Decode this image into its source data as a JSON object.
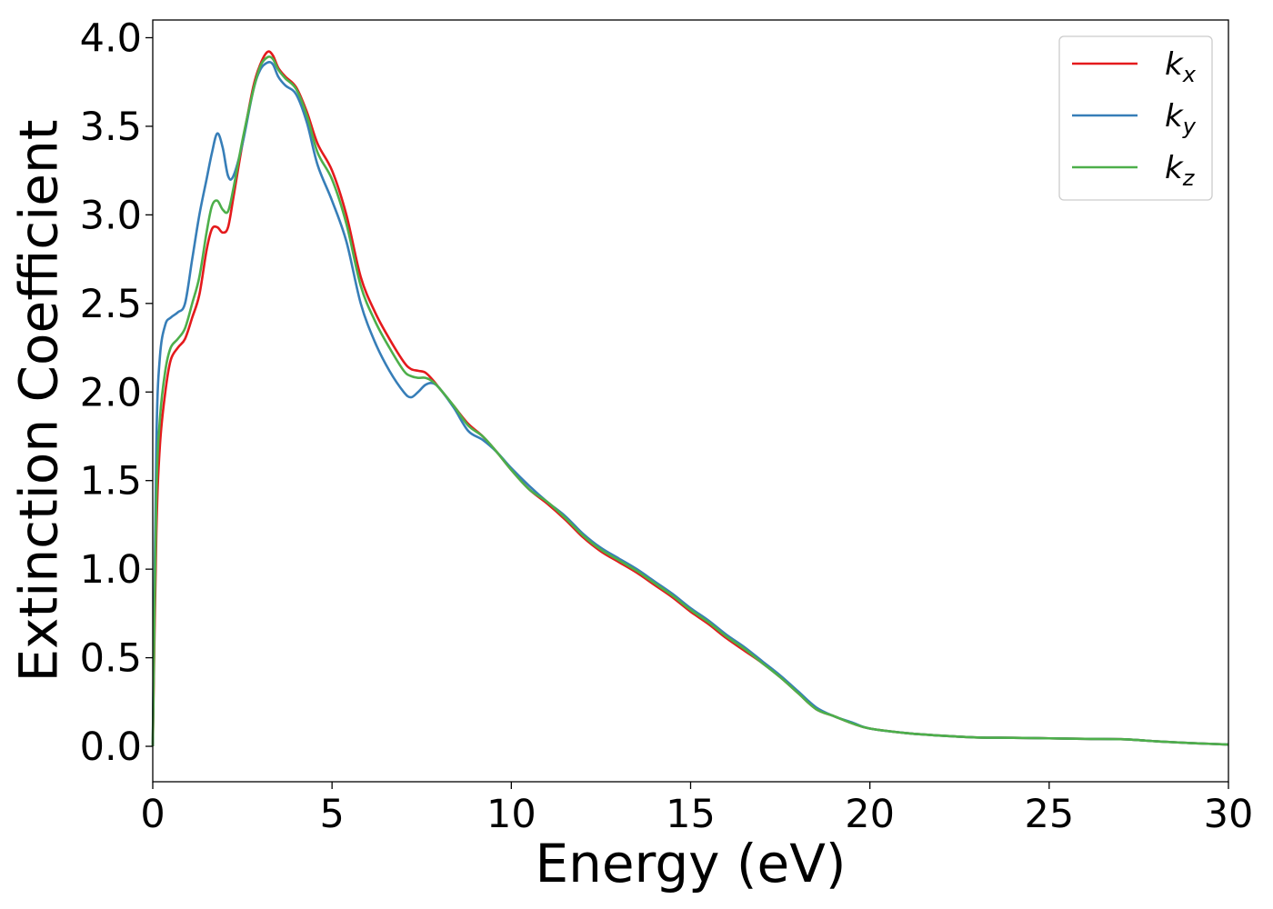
{
  "chart_data": {
    "type": "line",
    "xlabel": "Energy (eV)",
    "ylabel": "Extinction Coefficient",
    "xlim": [
      0,
      30
    ],
    "ylim": [
      -0.2,
      4.1
    ],
    "xticks": [
      0,
      5,
      10,
      15,
      20,
      25,
      30
    ],
    "xtick_labels": [
      "0",
      "5",
      "10",
      "15",
      "20",
      "25",
      "30"
    ],
    "yticks": [
      0.0,
      0.5,
      1.0,
      1.5,
      2.0,
      2.5,
      3.0,
      3.5,
      4.0
    ],
    "ytick_labels": [
      "0.0",
      "0.5",
      "1.0",
      "1.5",
      "2.0",
      "2.5",
      "3.0",
      "3.5",
      "4.0"
    ],
    "grid": false,
    "legend_position": "top-right",
    "series": [
      {
        "name": "k_x",
        "label_main": "k",
        "label_sub": "x",
        "color": "#e41a1c",
        "x": [
          0,
          0.1,
          0.2,
          0.35,
          0.5,
          0.7,
          0.9,
          1.1,
          1.3,
          1.5,
          1.65,
          1.8,
          1.95,
          2.1,
          2.25,
          2.5,
          2.8,
          3.0,
          3.2,
          3.35,
          3.5,
          3.7,
          4.0,
          4.3,
          4.6,
          5.0,
          5.4,
          5.8,
          6.2,
          6.6,
          7.0,
          7.2,
          7.4,
          7.6,
          7.8,
          8.0,
          8.4,
          8.8,
          9.2,
          9.6,
          10.0,
          10.5,
          11.0,
          11.5,
          12.0,
          12.5,
          13.0,
          13.5,
          14.0,
          14.5,
          15.0,
          15.5,
          16.0,
          16.5,
          17.0,
          17.5,
          18.0,
          18.5,
          19.0,
          19.5,
          20.0,
          21.0,
          22.0,
          23.0,
          24.0,
          25.0,
          26.0,
          27.0,
          27.5,
          28.0,
          29.0,
          30.0
        ],
        "values": [
          0.0,
          1.2,
          1.7,
          2.0,
          2.18,
          2.25,
          2.3,
          2.42,
          2.55,
          2.8,
          2.92,
          2.93,
          2.9,
          2.93,
          3.1,
          3.4,
          3.72,
          3.85,
          3.92,
          3.9,
          3.83,
          3.78,
          3.72,
          3.58,
          3.4,
          3.25,
          3.0,
          2.65,
          2.45,
          2.3,
          2.17,
          2.13,
          2.12,
          2.11,
          2.07,
          2.02,
          1.92,
          1.82,
          1.75,
          1.66,
          1.56,
          1.45,
          1.37,
          1.28,
          1.18,
          1.1,
          1.04,
          0.98,
          0.91,
          0.84,
          0.76,
          0.69,
          0.61,
          0.54,
          0.47,
          0.39,
          0.3,
          0.21,
          0.17,
          0.13,
          0.1,
          0.075,
          0.06,
          0.05,
          0.048,
          0.045,
          0.042,
          0.04,
          0.035,
          0.028,
          0.018,
          0.01
        ]
      },
      {
        "name": "k_y",
        "label_main": "k",
        "label_sub": "y",
        "color": "#377eb8",
        "x": [
          0,
          0.1,
          0.2,
          0.35,
          0.5,
          0.7,
          0.9,
          1.1,
          1.3,
          1.5,
          1.65,
          1.8,
          1.95,
          2.1,
          2.25,
          2.5,
          2.8,
          3.0,
          3.2,
          3.35,
          3.5,
          3.7,
          4.0,
          4.3,
          4.6,
          5.0,
          5.4,
          5.8,
          6.2,
          6.6,
          7.0,
          7.2,
          7.4,
          7.6,
          7.8,
          8.0,
          8.4,
          8.8,
          9.2,
          9.6,
          10.0,
          10.5,
          11.0,
          11.5,
          12.0,
          12.5,
          13.0,
          13.5,
          14.0,
          14.5,
          15.0,
          15.5,
          16.0,
          16.5,
          17.0,
          17.5,
          18.0,
          18.5,
          19.0,
          19.5,
          20.0,
          21.0,
          22.0,
          23.0,
          24.0,
          25.0,
          26.0,
          27.0,
          27.5,
          28.0,
          29.0,
          30.0
        ],
        "values": [
          0.0,
          1.7,
          2.2,
          2.38,
          2.42,
          2.45,
          2.5,
          2.75,
          3.0,
          3.2,
          3.35,
          3.46,
          3.38,
          3.22,
          3.22,
          3.4,
          3.7,
          3.82,
          3.86,
          3.85,
          3.78,
          3.73,
          3.68,
          3.52,
          3.28,
          3.08,
          2.85,
          2.5,
          2.28,
          2.12,
          2.0,
          1.97,
          2.0,
          2.04,
          2.05,
          2.02,
          1.91,
          1.78,
          1.73,
          1.66,
          1.57,
          1.47,
          1.38,
          1.3,
          1.2,
          1.12,
          1.06,
          1.0,
          0.93,
          0.86,
          0.78,
          0.71,
          0.63,
          0.56,
          0.48,
          0.4,
          0.31,
          0.22,
          0.17,
          0.135,
          0.1,
          0.075,
          0.06,
          0.05,
          0.048,
          0.045,
          0.042,
          0.04,
          0.035,
          0.028,
          0.018,
          0.01
        ]
      },
      {
        "name": "k_z",
        "label_main": "k",
        "label_sub": "z",
        "color": "#4daf4a",
        "x": [
          0,
          0.1,
          0.2,
          0.35,
          0.5,
          0.7,
          0.9,
          1.1,
          1.3,
          1.5,
          1.65,
          1.8,
          1.95,
          2.1,
          2.25,
          2.5,
          2.8,
          3.0,
          3.2,
          3.35,
          3.5,
          3.7,
          4.0,
          4.3,
          4.6,
          5.0,
          5.4,
          5.8,
          6.2,
          6.6,
          7.0,
          7.2,
          7.4,
          7.6,
          7.8,
          8.0,
          8.4,
          8.8,
          9.2,
          9.6,
          10.0,
          10.5,
          11.0,
          11.5,
          12.0,
          12.5,
          13.0,
          13.5,
          14.0,
          14.5,
          15.0,
          15.5,
          16.0,
          16.5,
          17.0,
          17.5,
          18.0,
          18.5,
          19.0,
          19.5,
          20.0,
          21.0,
          22.0,
          23.0,
          24.0,
          25.0,
          26.0,
          27.0,
          27.5,
          28.0,
          29.0,
          30.0
        ],
        "values": [
          0.0,
          1.4,
          1.85,
          2.12,
          2.25,
          2.3,
          2.36,
          2.5,
          2.65,
          2.9,
          3.05,
          3.08,
          3.03,
          3.02,
          3.15,
          3.42,
          3.7,
          3.84,
          3.89,
          3.88,
          3.82,
          3.77,
          3.71,
          3.56,
          3.35,
          3.2,
          2.95,
          2.6,
          2.4,
          2.25,
          2.12,
          2.09,
          2.08,
          2.08,
          2.06,
          2.02,
          1.92,
          1.81,
          1.75,
          1.66,
          1.56,
          1.45,
          1.38,
          1.29,
          1.19,
          1.11,
          1.05,
          0.99,
          0.92,
          0.85,
          0.77,
          0.7,
          0.62,
          0.55,
          0.47,
          0.39,
          0.3,
          0.21,
          0.17,
          0.13,
          0.1,
          0.075,
          0.06,
          0.05,
          0.048,
          0.045,
          0.042,
          0.04,
          0.035,
          0.028,
          0.018,
          0.01
        ]
      }
    ]
  }
}
